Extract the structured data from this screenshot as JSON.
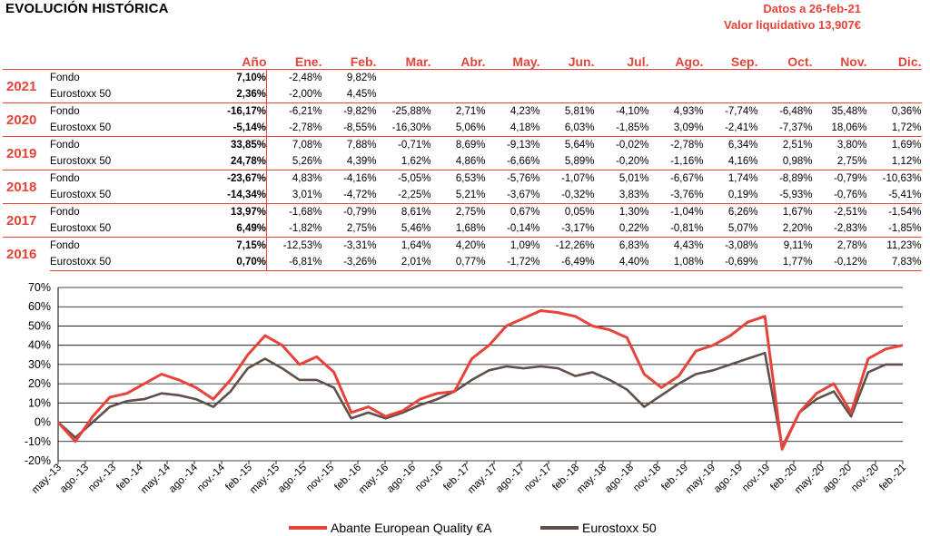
{
  "header": {
    "title": "EVOLUCIÓN HISTÓRICA",
    "date_line": "Datos a 26-feb-21",
    "nav_line": "Valor liquidativo 13,907€"
  },
  "table": {
    "col_year": "Año",
    "months": [
      "Ene.",
      "Feb.",
      "Mar.",
      "Abr.",
      "May.",
      "Jun.",
      "Jul.",
      "Ago.",
      "Sep.",
      "Oct.",
      "Nov.",
      "Dic."
    ],
    "groups": [
      {
        "year": "2021",
        "rows": [
          {
            "label": "Fondo",
            "ytd": "7,10%",
            "m": [
              "-2,48%",
              "9,82%",
              "",
              "",
              "",
              "",
              "",
              "",
              "",
              "",
              "",
              ""
            ]
          },
          {
            "label": "Eurostoxx 50",
            "ytd": "2,36%",
            "m": [
              "-2,00%",
              "4,45%",
              "",
              "",
              "",
              "",
              "",
              "",
              "",
              "",
              "",
              ""
            ]
          }
        ]
      },
      {
        "year": "2020",
        "rows": [
          {
            "label": "Fondo",
            "ytd": "-16,17%",
            "m": [
              "-6,21%",
              "-9,82%",
              "-25,88%",
              "2,71%",
              "4,23%",
              "5,81%",
              "-4,10%",
              "4,93%",
              "-7,74%",
              "-6,48%",
              "35,48%",
              "0,36%"
            ]
          },
          {
            "label": "Eurostoxx 50",
            "ytd": "-5,14%",
            "m": [
              "-2,78%",
              "-8,55%",
              "-16,30%",
              "5,06%",
              "4,18%",
              "6,03%",
              "-1,85%",
              "3,09%",
              "-2,41%",
              "-7,37%",
              "18,06%",
              "1,72%"
            ]
          }
        ]
      },
      {
        "year": "2019",
        "rows": [
          {
            "label": "Fondo",
            "ytd": "33,85%",
            "m": [
              "7,08%",
              "7,88%",
              "-0,71%",
              "8,69%",
              "-9,13%",
              "5,64%",
              "-0,02%",
              "-2,78%",
              "6,34%",
              "2,51%",
              "3,80%",
              "1,69%"
            ]
          },
          {
            "label": "Eurostoxx 50",
            "ytd": "24,78%",
            "m": [
              "5,26%",
              "4,39%",
              "1,62%",
              "4,86%",
              "-6,66%",
              "5,89%",
              "-0,20%",
              "-1,16%",
              "4,16%",
              "0,98%",
              "2,75%",
              "1,12%"
            ]
          }
        ]
      },
      {
        "year": "2018",
        "rows": [
          {
            "label": "Fondo",
            "ytd": "-23,67%",
            "m": [
              "4,83%",
              "-4,16%",
              "-5,05%",
              "6,53%",
              "-5,76%",
              "-1,07%",
              "5,01%",
              "-6,67%",
              "1,74%",
              "-8,89%",
              "-0,79%",
              "-10,63%"
            ]
          },
          {
            "label": "Eurostoxx 50",
            "ytd": "-14,34%",
            "m": [
              "3,01%",
              "-4,72%",
              "-2,25%",
              "5,21%",
              "-3,67%",
              "-0,32%",
              "3,83%",
              "-3,76%",
              "0,19%",
              "-5,93%",
              "-0,76%",
              "-5,41%"
            ]
          }
        ]
      },
      {
        "year": "2017",
        "rows": [
          {
            "label": "Fondo",
            "ytd": "13,97%",
            "m": [
              "-1,68%",
              "-0,79%",
              "8,61%",
              "2,75%",
              "0,67%",
              "0,05%",
              "1,30%",
              "-1,04%",
              "6,26%",
              "1,67%",
              "-2,51%",
              "-1,54%"
            ]
          },
          {
            "label": "Eurostoxx 50",
            "ytd": "6,49%",
            "m": [
              "-1,82%",
              "2,75%",
              "5,46%",
              "1,68%",
              "-0,14%",
              "-3,17%",
              "0,22%",
              "-0,81%",
              "5,07%",
              "2,20%",
              "-2,83%",
              "-1,85%"
            ]
          }
        ]
      },
      {
        "year": "2016",
        "rows": [
          {
            "label": "Fondo",
            "ytd": "7,15%",
            "m": [
              "-12,53%",
              "-3,31%",
              "1,64%",
              "4,20%",
              "1,09%",
              "-12,26%",
              "6,83%",
              "4,43%",
              "-3,08%",
              "9,11%",
              "2,78%",
              "11,23%"
            ]
          },
          {
            "label": "Eurostoxx 50",
            "ytd": "0,70%",
            "m": [
              "-6,81%",
              "-3,26%",
              "2,01%",
              "0,77%",
              "-1,72%",
              "-6,49%",
              "4,40%",
              "1,08%",
              "-0,69%",
              "1,77%",
              "-0,12%",
              "7,83%"
            ]
          }
        ]
      }
    ]
  },
  "chart_data": {
    "type": "line",
    "ylim": [
      -20,
      70
    ],
    "y_ticks": [
      "70%",
      "60%",
      "50%",
      "40%",
      "30%",
      "20%",
      "10%",
      "0%",
      "-10%",
      "-20%"
    ],
    "x_ticks": [
      "may.-13",
      "ago.-13",
      "nov.-13",
      "feb.-14",
      "may.-14",
      "ago.-14",
      "nov.-14",
      "feb.-15",
      "may.-15",
      "ago.-15",
      "nov.-15",
      "feb.-16",
      "may.-16",
      "ago.-16",
      "nov.-16",
      "feb.-17",
      "may.-17",
      "ago.-17",
      "nov.-17",
      "feb.-18",
      "may.-18",
      "ago.-18",
      "nov.-18",
      "feb.-19",
      "may.-19",
      "ago.-19",
      "nov.-19",
      "feb.-20",
      "may.-20",
      "ago.-20",
      "nov.-20",
      "feb.-21"
    ],
    "grid": true,
    "legend_position": "bottom",
    "series": [
      {
        "name": "Abante European Quality €A",
        "color": "#e8433a",
        "values": [
          0,
          -10,
          3,
          13,
          15,
          20,
          25,
          22,
          18,
          12,
          22,
          35,
          45,
          40,
          30,
          34,
          26,
          5,
          8,
          3,
          6,
          12,
          15,
          16,
          33,
          40,
          50,
          54,
          58,
          57,
          55,
          50,
          48,
          44,
          25,
          18,
          24,
          37,
          40,
          45,
          52,
          55,
          -14,
          5,
          15,
          20,
          5,
          33,
          38,
          40
        ]
      },
      {
        "name": "Eurostoxx 50",
        "color": "#5e5049",
        "values": [
          0,
          -8,
          0,
          8,
          11,
          12,
          15,
          14,
          12,
          8,
          16,
          28,
          33,
          28,
          22,
          22,
          18,
          2,
          5,
          2,
          5,
          9,
          12,
          16,
          22,
          27,
          29,
          28,
          29,
          28,
          24,
          26,
          22,
          17,
          8,
          14,
          20,
          25,
          27,
          30,
          33,
          36,
          -13,
          5,
          12,
          16,
          3,
          26,
          30,
          30
        ]
      }
    ]
  }
}
